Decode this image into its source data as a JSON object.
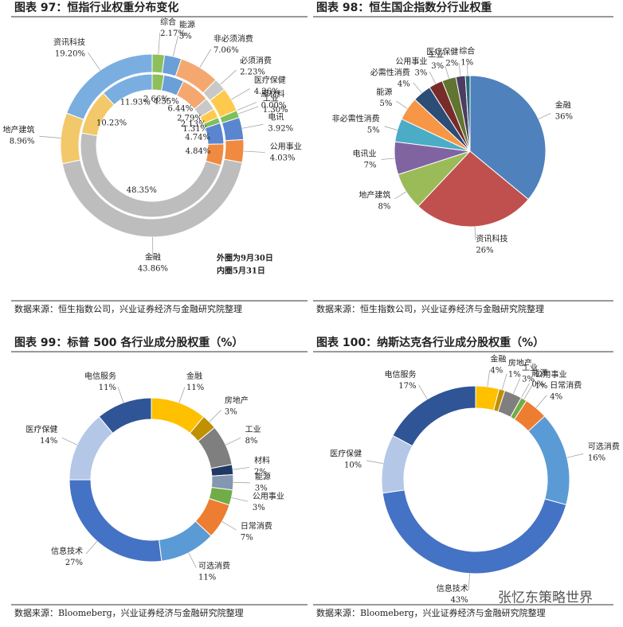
{
  "watermark": "张忆东策略世界",
  "chart_data": [
    {
      "type": "double-donut",
      "title": "图表 97：恒指行业权重分布变化",
      "categories": [
        "综合",
        "能源",
        "非必须消费",
        "必须消费",
        "医疗保健",
        "原材料",
        "工业",
        "电讯",
        "公用事业",
        "金融",
        "地产建筑",
        "资讯科技"
      ],
      "colors": [
        "#8fbf5a",
        "#6a9fd8",
        "#f4a870",
        "#c8c8c8",
        "#ffc94d",
        "#9dc3e6",
        "#7fbf5a",
        "#5a86d0",
        "#f08a40",
        "#bdbdbd",
        "#f2c86a",
        "#7aaee0"
      ],
      "series": [
        {
          "values": [
            2.17,
            3,
            7.06,
            2.23,
            4.26,
            0,
            1.3,
            3.92,
            4.03,
            43.86,
            8.96,
            19.2
          ],
          "value_labels": [
            "2.17%",
            "3%",
            "7.06%",
            "2.23%",
            "4.26%",
            "0.00%",
            "1.30%",
            "3.92%",
            "4.03%",
            "43.86%",
            "8.96%",
            "19.20%"
          ]
        },
        {
          "values": [
            2.66,
            4.55,
            6.44,
            2.79,
            2.13,
            null,
            1.31,
            4.74,
            4.84,
            48.35,
            10.23,
            11.93
          ],
          "value_labels": [
            "2.66%",
            "4.55%",
            "6.44%",
            "2.79%",
            "2.13%",
            null,
            "1.31%",
            "4.74%",
            "4.84%",
            "48.35%",
            "10.23%",
            "11.93%"
          ]
        }
      ],
      "annotations": [
        "外圈为9月30日",
        "内圈5月31日"
      ],
      "source": "数据来源：恒生指数公司，兴业证券经济与金融研究院整理"
    },
    {
      "type": "pie",
      "title": "图表 98：恒生国企指数分行业权重",
      "categories": [
        "金融",
        "资讯科技",
        "地产建筑",
        "电讯业",
        "非必需性消费",
        "能源",
        "必需性消费",
        "公用事业",
        "工业",
        "医疗保健",
        "综合"
      ],
      "values": [
        36,
        26,
        8,
        7,
        5,
        5,
        4,
        3,
        3,
        2,
        1
      ],
      "value_labels": [
        "36%",
        "26%",
        "8%",
        "7%",
        "5%",
        "5%",
        "4%",
        "3%",
        "3%",
        "2%",
        "1%"
      ],
      "colors": [
        "#4f81bd",
        "#c0504d",
        "#9bbb59",
        "#8064a2",
        "#4bacc6",
        "#f79646",
        "#2c4d75",
        "#772c2a",
        "#5f7530",
        "#4d3b62",
        "#276a7c"
      ],
      "source": "数据来源：恒生指数公司，兴业证券经济与金融研究院整理"
    },
    {
      "type": "donut",
      "title": "图表 99：标普 500 各行业成分股权重（%）",
      "categories": [
        "金融",
        "房地产",
        "工业",
        "材料",
        "能源",
        "公用事业",
        "日常消费",
        "可选消费",
        "信息技术",
        "医疗保健",
        "电信服务"
      ],
      "values": [
        11,
        3,
        8,
        2,
        3,
        3,
        7,
        11,
        27,
        14,
        11
      ],
      "value_labels": [
        "11%",
        "3%",
        "8%",
        "2%",
        "3%",
        "3%",
        "7%",
        "11%",
        "27%",
        "14%",
        "11%"
      ],
      "colors": [
        "#ffc000",
        "#bf9000",
        "#7f7f7f",
        "#1f3864",
        "#8497b0",
        "#70ad47",
        "#ed7d31",
        "#5b9bd5",
        "#4472c4",
        "#b4c7e7",
        "#2f5597"
      ],
      "source": "数据来源：Bloomeberg，兴业证券经济与金融研究院整理"
    },
    {
      "type": "donut",
      "title": "图表 100：纳斯达克各行业成分股权重（%）",
      "categories": [
        "金融",
        "房地产",
        "工业",
        "能源",
        "公用事业",
        "日常消费",
        "可选消费",
        "信息技术",
        "医疗保健",
        "电信服务"
      ],
      "values": [
        4,
        1,
        3,
        0,
        1,
        4,
        16,
        43,
        10,
        17
      ],
      "value_labels": [
        "4%",
        "1%",
        "3%",
        "0%",
        "1%",
        "4%",
        "16%",
        "43%",
        "10%",
        "17%"
      ],
      "colors": [
        "#ffc000",
        "#bf9000",
        "#7f7f7f",
        "#8497b0",
        "#70ad47",
        "#ed7d31",
        "#5b9bd5",
        "#4472c4",
        "#b4c7e7",
        "#2f5597"
      ],
      "source": "数据来源：Bloomeberg，兴业证券经济与金融研究院整理"
    }
  ]
}
